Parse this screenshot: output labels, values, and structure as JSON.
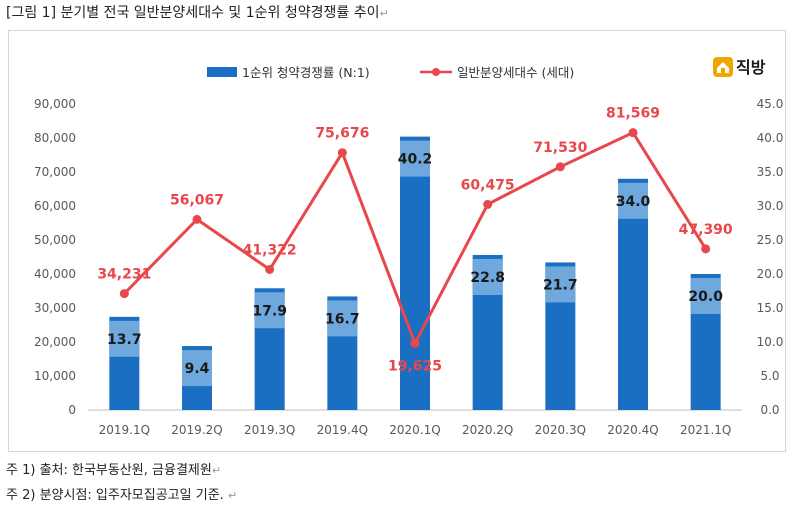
{
  "caption": "[그림 1] 분기별 전국 일반분양세대수 및 1순위 청약경쟁률 추이",
  "return_mark": "↵",
  "logo": {
    "text": "직방",
    "icon": "house-icon",
    "color": "#f0a500"
  },
  "notes": {
    "source": "주 1) 출처: 한국부동산원, 금융결제원",
    "timing": "주 2) 분양시점: 입주자모집공고일 기준."
  },
  "chart_data": {
    "type": "bar",
    "categories": [
      "2019.1Q",
      "2019.2Q",
      "2019.3Q",
      "2019.4Q",
      "2020.1Q",
      "2020.2Q",
      "2020.3Q",
      "2020.4Q",
      "2021.1Q"
    ],
    "series": [
      {
        "name": "1순위 청약경쟁률 (N:1)",
        "type": "bar",
        "axis": "right",
        "color": "#1b6fc2",
        "values": [
          13.7,
          9.4,
          17.9,
          16.7,
          40.2,
          22.8,
          21.7,
          34.0,
          20.0
        ],
        "labels": [
          "13.7",
          "9.4",
          "17.9",
          "16.7",
          "40.2",
          "22.8",
          "21.7",
          "34.0",
          "20.0"
        ]
      },
      {
        "name": "일반분양세대수 (세대)",
        "type": "line",
        "axis": "left",
        "color": "#e8474c",
        "values": [
          34231,
          56067,
          41322,
          75676,
          19625,
          60475,
          71530,
          81569,
          47390
        ],
        "labels": [
          "34,231",
          "56,067",
          "41,322",
          "75,676",
          "19,625",
          "60,475",
          "71,530",
          "81,569",
          "47,390"
        ]
      }
    ],
    "y_left": {
      "min": 0,
      "max": 90000,
      "ticks": [
        "0",
        "10,000",
        "20,000",
        "30,000",
        "40,000",
        "50,000",
        "60,000",
        "70,000",
        "80,000",
        "90,000"
      ]
    },
    "y_right": {
      "min": 0,
      "max": 45,
      "ticks": [
        "0.0",
        "5.0",
        "10.0",
        "15.0",
        "20.0",
        "25.0",
        "30.0",
        "35.0",
        "40.0",
        "45.0"
      ]
    },
    "legend_position": "top-center",
    "grid": false
  }
}
